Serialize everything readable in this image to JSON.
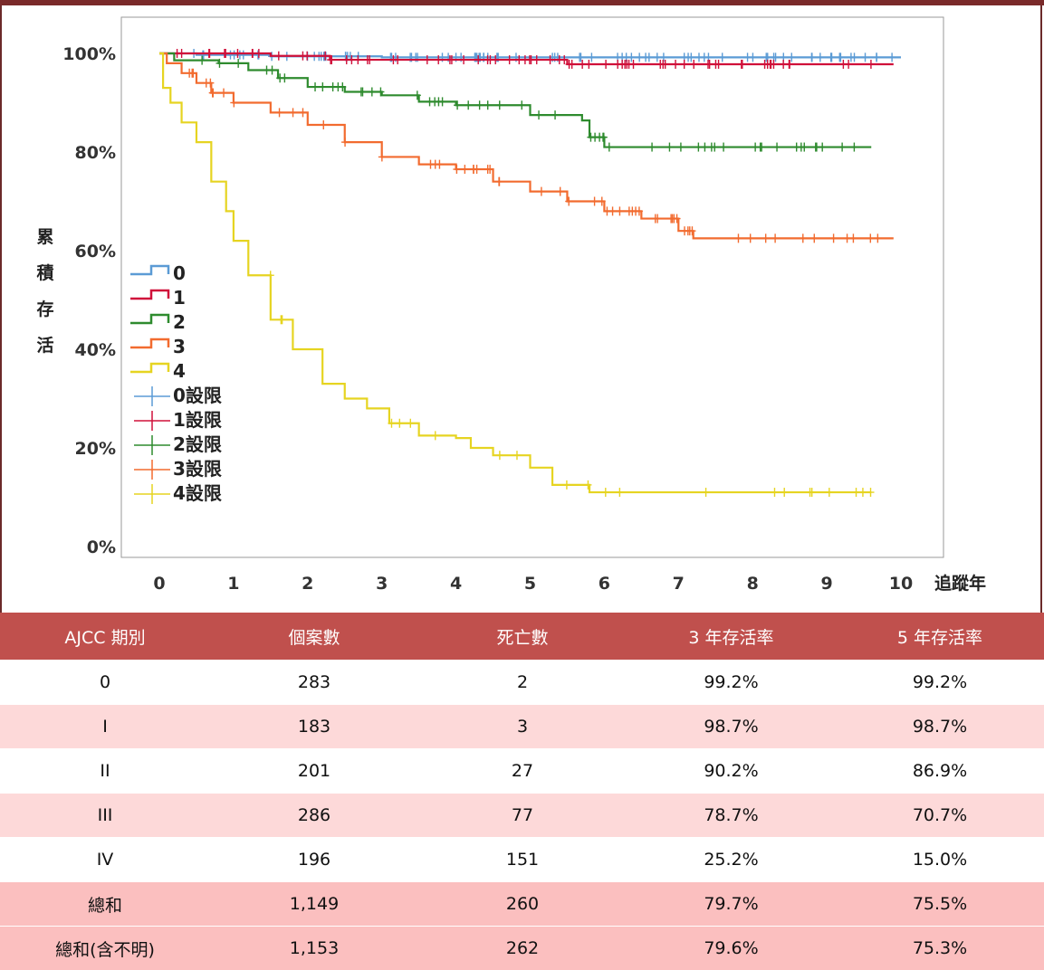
{
  "chart_data": {
    "type": "line",
    "subtype": "kaplan-meier step survival curves with censoring marks",
    "xlabel": "追蹤年",
    "ylabel": "累積存活",
    "x_ticks": [
      "0",
      "1",
      "2",
      "3",
      "4",
      "5",
      "6",
      "7",
      "8",
      "9",
      "10"
    ],
    "y_ticks": [
      "0%",
      "20%",
      "40%",
      "60%",
      "80%",
      "100%"
    ],
    "xlim": [
      0,
      10
    ],
    "ylim": [
      0,
      100
    ],
    "grid": false,
    "legend_position": "left inside plot",
    "legend": [
      "0",
      "1",
      "2",
      "3",
      "4",
      "0設限",
      "1設限",
      "2設限",
      "3設限",
      "4設限"
    ],
    "series": [
      {
        "name": "0",
        "color": "#5b9bd5",
        "end_x": 9.9,
        "points": [
          [
            0,
            100
          ],
          [
            0.5,
            99.7
          ],
          [
            1.5,
            99.4
          ],
          [
            3,
            99.2
          ],
          [
            5,
            99.2
          ],
          [
            10,
            99.2
          ]
        ],
        "censor_ranges": [
          [
            0.05,
            9.9,
            90
          ]
        ]
      },
      {
        "name": "1",
        "color": "#d0103a",
        "end_x": 9.9,
        "points": [
          [
            0,
            100
          ],
          [
            1.5,
            99.5
          ],
          [
            2.3,
            98.7
          ],
          [
            5.4,
            98.7
          ],
          [
            5.5,
            97.8
          ],
          [
            9.9,
            97.8
          ]
        ],
        "censor_ranges": [
          [
            0.1,
            9.9,
            75
          ]
        ]
      },
      {
        "name": "2",
        "color": "#2e8b2e",
        "end_x": 9.6,
        "points": [
          [
            0,
            100
          ],
          [
            0.2,
            98.6
          ],
          [
            0.8,
            98
          ],
          [
            1.2,
            96.6
          ],
          [
            1.6,
            95
          ],
          [
            2.0,
            93.2
          ],
          [
            2.5,
            92.2
          ],
          [
            3,
            91.5
          ],
          [
            3.5,
            90.2
          ],
          [
            4,
            89.5
          ],
          [
            5,
            87.5
          ],
          [
            5.7,
            86.4
          ],
          [
            5.8,
            83
          ],
          [
            6.0,
            81
          ],
          [
            9.6,
            81
          ]
        ],
        "censor_ranges": [
          [
            0.3,
            9.6,
            55
          ]
        ]
      },
      {
        "name": "3",
        "color": "#f26b2f",
        "end_x": 9.9,
        "points": [
          [
            0,
            100
          ],
          [
            0.1,
            98
          ],
          [
            0.3,
            96
          ],
          [
            0.5,
            94
          ],
          [
            0.7,
            92
          ],
          [
            1,
            90
          ],
          [
            1.5,
            88
          ],
          [
            2,
            85.5
          ],
          [
            2.5,
            82
          ],
          [
            3,
            79
          ],
          [
            3.5,
            77.5
          ],
          [
            4,
            76.5
          ],
          [
            4.5,
            74
          ],
          [
            5,
            72
          ],
          [
            5.5,
            70
          ],
          [
            6,
            68
          ],
          [
            6.5,
            66.5
          ],
          [
            7,
            64
          ],
          [
            7.2,
            62.5
          ],
          [
            9.9,
            62.5
          ]
        ],
        "censor_ranges": [
          [
            0.3,
            9.9,
            60
          ]
        ]
      },
      {
        "name": "4",
        "color": "#e6d421",
        "end_x": 9.6,
        "points": [
          [
            0,
            100
          ],
          [
            0.05,
            93
          ],
          [
            0.15,
            90
          ],
          [
            0.3,
            86
          ],
          [
            0.5,
            82
          ],
          [
            0.7,
            74
          ],
          [
            0.9,
            68
          ],
          [
            1,
            62
          ],
          [
            1.2,
            55
          ],
          [
            1.5,
            46
          ],
          [
            1.8,
            40
          ],
          [
            2.2,
            33
          ],
          [
            2.5,
            30
          ],
          [
            2.8,
            28
          ],
          [
            3.1,
            25
          ],
          [
            3.5,
            22.5
          ],
          [
            4,
            22
          ],
          [
            4.2,
            20
          ],
          [
            4.5,
            18.5
          ],
          [
            5,
            16
          ],
          [
            5.3,
            12.5
          ],
          [
            5.8,
            11
          ],
          [
            9.6,
            11
          ]
        ],
        "censor_ranges": [
          [
            1,
            9.6,
            22
          ]
        ]
      }
    ]
  },
  "table": {
    "headers": [
      "AJCC 期別",
      "個案數",
      "死亡數",
      "3 年存活率",
      "5 年存活率"
    ],
    "rows": [
      [
        "0",
        "283",
        "2",
        "99.2%",
        "99.2%"
      ],
      [
        "I",
        "183",
        "3",
        "98.7%",
        "98.7%"
      ],
      [
        "II",
        "201",
        "27",
        "90.2%",
        "86.9%"
      ],
      [
        "III",
        "286",
        "77",
        "78.7%",
        "70.7%"
      ],
      [
        "IV",
        "196",
        "151",
        "25.2%",
        "15.0%"
      ],
      [
        "總和",
        "1,149",
        "260",
        "79.7%",
        "75.5%"
      ],
      [
        "總和(含不明)",
        "1,153",
        "262",
        "79.6%",
        "75.3%"
      ]
    ]
  }
}
